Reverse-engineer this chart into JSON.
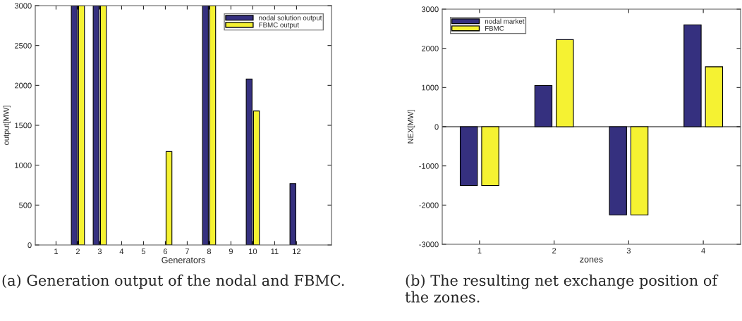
{
  "chart_data": [
    {
      "type": "bar",
      "xlabel": "Generators",
      "ylabel": "output[MW]",
      "categories": [
        "1",
        "2",
        "3",
        "4",
        "5",
        "6",
        "7",
        "8",
        "9",
        "10",
        "11",
        "12"
      ],
      "series": [
        {
          "name": "nodal solution output",
          "color": "#35307f",
          "values": [
            0,
            3000,
            3000,
            0,
            0,
            0,
            0,
            3000,
            0,
            2080,
            0,
            770
          ]
        },
        {
          "name": "FBMC output",
          "color": "#f5f232",
          "values": [
            0,
            3000,
            3000,
            0,
            0,
            1170,
            0,
            3000,
            0,
            1680,
            0,
            0
          ]
        }
      ],
      "ylim": [
        0,
        3000
      ],
      "yticks": [
        0,
        500,
        1000,
        1500,
        2000,
        2500,
        3000
      ],
      "legend": "top right",
      "grid": false,
      "annotations": [
        "(a) Generation output of the nodal and FBMC."
      ]
    },
    {
      "type": "bar",
      "xlabel": "zones",
      "ylabel": "NEX[MW]",
      "categories": [
        "1",
        "2",
        "3",
        "4"
      ],
      "series": [
        {
          "name": "nodal market",
          "color": "#35307f",
          "values": [
            -1500,
            1050,
            -2250,
            2600
          ]
        },
        {
          "name": "FBMC",
          "color": "#f5f232",
          "values": [
            -1500,
            2220,
            -2250,
            1530
          ]
        }
      ],
      "ylim": [
        -3000,
        3000
      ],
      "yticks": [
        -3000,
        -2000,
        -1000,
        0,
        1000,
        2000,
        3000
      ],
      "ref_lines": [
        {
          "axis": "y",
          "value": 0
        }
      ],
      "legend": "top left",
      "grid": false,
      "annotations": [
        "(b) The resulting net exchange position of the zones."
      ]
    }
  ]
}
